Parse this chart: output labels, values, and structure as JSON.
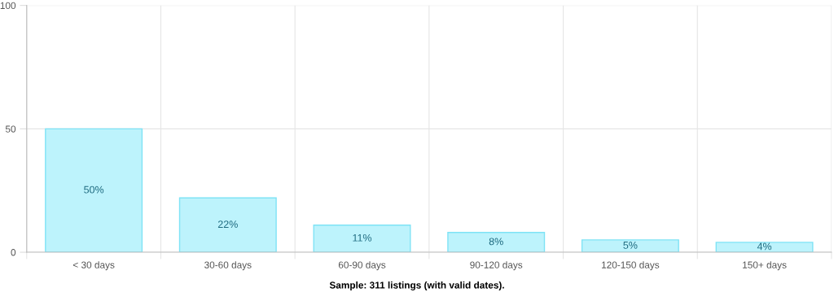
{
  "chart_data": {
    "type": "bar",
    "categories": [
      "< 30 days",
      "30-60 days",
      "60-90 days",
      "90-120 days",
      "120-150 days",
      "150+ days"
    ],
    "values": [
      50,
      22,
      11,
      8,
      5,
      4
    ],
    "value_labels": [
      "50%",
      "22%",
      "11%",
      "8%",
      "5%",
      "4%"
    ],
    "color": "#bdf3fc",
    "ylim": [
      0,
      100
    ],
    "yticks": [
      0,
      50,
      100
    ],
    "grid": true,
    "annotations": [
      "Sample: 311 listings (with valid dates)."
    ]
  }
}
